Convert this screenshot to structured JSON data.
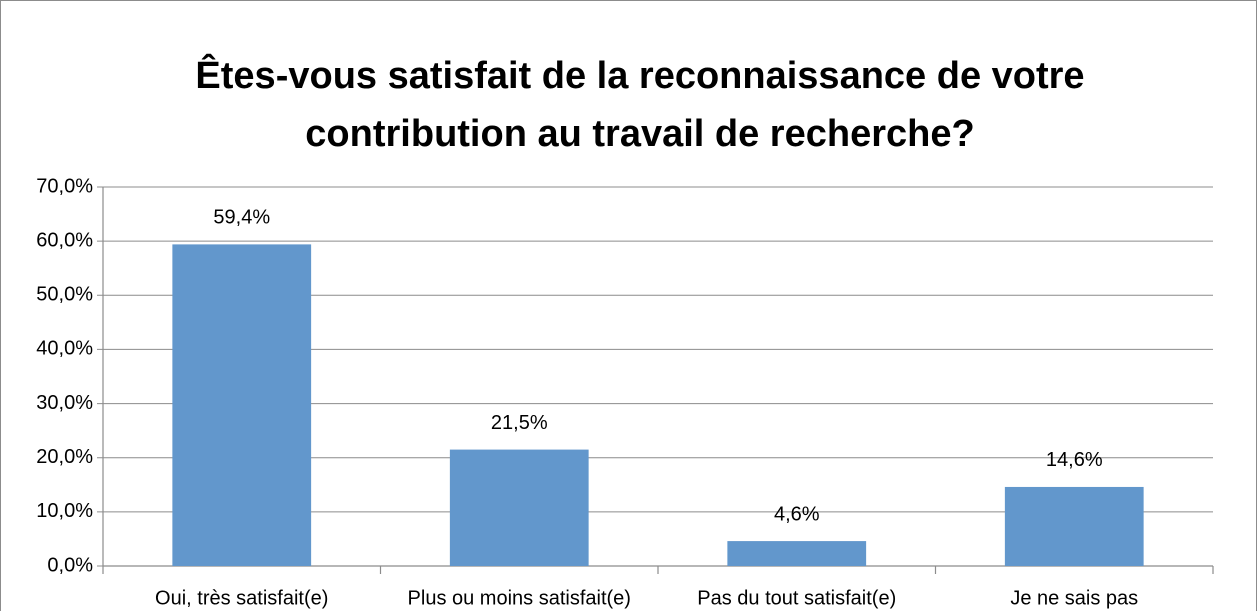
{
  "chart_data": {
    "type": "bar",
    "title": [
      "Êtes-vous satisfait de la reconnaissance de votre",
      "contribution au travail de recherche?"
    ],
    "categories": [
      "Oui, très satisfait(e)",
      "Plus ou moins satisfait(e)",
      "Pas du tout satisfait(e)",
      "Je ne sais pas"
    ],
    "values": [
      59.4,
      21.5,
      4.6,
      14.6
    ],
    "value_labels": [
      "59,4%",
      "21,5%",
      "4,6%",
      "14,6%"
    ],
    "color": "#6297cc",
    "ylim": [
      0,
      70
    ],
    "yticks": [
      {
        "value": 0,
        "label": "0,0%"
      },
      {
        "value": 10,
        "label": "10,0%"
      },
      {
        "value": 20,
        "label": "20,0%"
      },
      {
        "value": 30,
        "label": "30,0%"
      },
      {
        "value": 40,
        "label": "40,0%"
      },
      {
        "value": 50,
        "label": "50,0%"
      },
      {
        "value": 60,
        "label": "60,0%"
      },
      {
        "value": 70,
        "label": "70,0%"
      }
    ],
    "grid": true
  }
}
